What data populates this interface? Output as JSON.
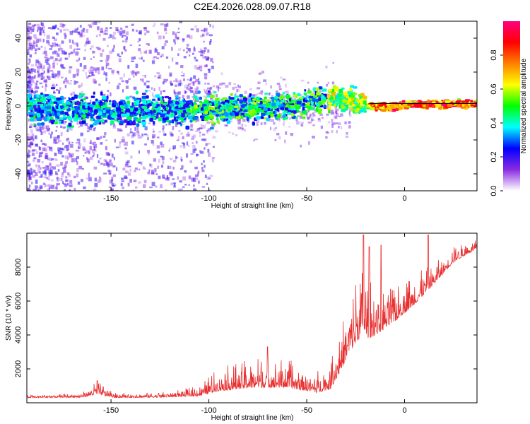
{
  "chart_data": [
    {
      "type": "heatmap",
      "title": "C2E4.2026.028.09.07.R18",
      "xlabel": "Height of straight line (km)",
      "ylabel": "Frequency (Hz)",
      "xlim": [
        -193,
        37
      ],
      "ylim": [
        -50,
        50
      ],
      "xticks": [
        -150,
        -100,
        -50,
        0
      ],
      "yticks": [
        -40,
        -20,
        0,
        20,
        40
      ],
      "colorbar": {
        "label": "Normalized spectral amplitude",
        "range": [
          0,
          1
        ],
        "ticks": [
          "0.0",
          "0.2",
          "0.4",
          "0.6",
          "0.8"
        ],
        "tick_values": [
          0.0,
          0.2,
          0.4,
          0.6,
          0.8
        ],
        "colormap": [
          "#ffffff",
          "#8a2be2",
          "#0000ff",
          "#00ffff",
          "#00ff00",
          "#ffff00",
          "#ff8000",
          "#ff0000",
          "#ff0080"
        ]
      },
      "trace_center_hz": [
        {
          "x": -190,
          "f": -2
        },
        {
          "x": -150,
          "f": -3
        },
        {
          "x": -120,
          "f": -2
        },
        {
          "x": -90,
          "f": -2
        },
        {
          "x": -60,
          "f": 0
        },
        {
          "x": -45,
          "f": 3
        },
        {
          "x": -35,
          "f": 5
        },
        {
          "x": -28,
          "f": 3
        },
        {
          "x": -18,
          "f": 0
        },
        {
          "x": -5,
          "f": -1
        },
        {
          "x": 0,
          "f": 1
        },
        {
          "x": 37,
          "f": 1
        }
      ]
    },
    {
      "type": "line",
      "series_name": "SNR",
      "xlabel": "Height of straight line (km)",
      "ylabel": "SNR (10 * v/v)",
      "xlim": [
        -193,
        37
      ],
      "ylim": [
        0,
        10000
      ],
      "xticks": [
        -150,
        -100,
        -50,
        0
      ],
      "yticks": [
        2000,
        4000,
        6000,
        8000
      ],
      "line_color": "#e83030",
      "envelope": [
        {
          "x": -193,
          "base": 300,
          "amp": 150
        },
        {
          "x": -165,
          "base": 320,
          "amp": 250
        },
        {
          "x": -157,
          "base": 500,
          "amp": 800
        },
        {
          "x": -148,
          "base": 300,
          "amp": 300
        },
        {
          "x": -125,
          "base": 320,
          "amp": 300
        },
        {
          "x": -105,
          "base": 400,
          "amp": 600
        },
        {
          "x": -95,
          "base": 700,
          "amp": 1400
        },
        {
          "x": -75,
          "base": 900,
          "amp": 1800
        },
        {
          "x": -60,
          "base": 900,
          "amp": 1700
        },
        {
          "x": -45,
          "base": 600,
          "amp": 1300
        },
        {
          "x": -38,
          "base": 800,
          "amp": 1800
        },
        {
          "x": -33,
          "base": 1800,
          "amp": 2500
        },
        {
          "x": -28,
          "base": 3000,
          "amp": 3500
        },
        {
          "x": -22,
          "base": 4000,
          "amp": 4500
        },
        {
          "x": -18,
          "base": 3800,
          "amp": 3500
        },
        {
          "x": -12,
          "base": 4200,
          "amp": 2800
        },
        {
          "x": -5,
          "base": 4800,
          "amp": 2200
        },
        {
          "x": 5,
          "base": 5800,
          "amp": 1800
        },
        {
          "x": 15,
          "base": 7000,
          "amp": 1200
        },
        {
          "x": 25,
          "base": 8300,
          "amp": 900
        },
        {
          "x": 37,
          "base": 9100,
          "amp": 500
        }
      ],
      "peaks": [
        {
          "x": -21,
          "y": 9900
        },
        {
          "x": -18,
          "y": 9200
        },
        {
          "x": -12,
          "y": 9300
        },
        {
          "x": 12,
          "y": 9900
        },
        {
          "x": -70,
          "y": 3300
        },
        {
          "x": -157,
          "y": 1300
        }
      ]
    }
  ]
}
